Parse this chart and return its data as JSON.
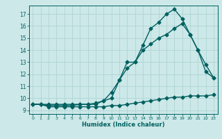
{
  "xlabel": "Humidex (Indice chaleur)",
  "bg_color": "#cce8e8",
  "line_color": "#006060",
  "grid_color": "#b0d4d4",
  "x_ticks": [
    0,
    1,
    2,
    3,
    4,
    5,
    6,
    7,
    8,
    9,
    10,
    11,
    12,
    13,
    14,
    15,
    16,
    17,
    18,
    19,
    20,
    21,
    22,
    23
  ],
  "y_ticks": [
    9,
    10,
    11,
    12,
    13,
    14,
    15,
    16,
    17
  ],
  "ylim": [
    8.7,
    17.7
  ],
  "xlim": [
    -0.5,
    23.5
  ],
  "line1_x": [
    0,
    1,
    2,
    3,
    4,
    5,
    6,
    7,
    8,
    9,
    10,
    11,
    12,
    13,
    14,
    15,
    16,
    17,
    18,
    19,
    20,
    21,
    22,
    23
  ],
  "line1_y": [
    9.5,
    9.5,
    9.3,
    9.3,
    9.3,
    9.3,
    9.3,
    9.3,
    9.3,
    9.3,
    9.4,
    9.4,
    9.5,
    9.6,
    9.7,
    9.8,
    9.9,
    10.0,
    10.1,
    10.1,
    10.2,
    10.2,
    10.2,
    10.3
  ],
  "line2_x": [
    0,
    1,
    2,
    3,
    4,
    5,
    6,
    7,
    8,
    9,
    10,
    11,
    12,
    13,
    14,
    15,
    16,
    17,
    18,
    19,
    20,
    21,
    22,
    23
  ],
  "line2_y": [
    9.5,
    9.5,
    9.5,
    9.5,
    9.5,
    9.5,
    9.5,
    9.5,
    9.5,
    9.8,
    10.0,
    11.5,
    13.0,
    13.0,
    14.4,
    15.8,
    16.3,
    17.0,
    17.4,
    16.6,
    15.3,
    14.0,
    12.2,
    11.7
  ],
  "line3_x": [
    0,
    1,
    2,
    3,
    4,
    5,
    6,
    7,
    8,
    9,
    10,
    11,
    12,
    13,
    14,
    15,
    16,
    17,
    18,
    19,
    20,
    21,
    22,
    23
  ],
  "line3_y": [
    9.5,
    9.5,
    9.4,
    9.4,
    9.4,
    9.4,
    9.5,
    9.5,
    9.6,
    9.8,
    10.5,
    11.5,
    12.5,
    13.0,
    14.0,
    14.5,
    15.0,
    15.3,
    15.8,
    16.2,
    15.3,
    14.0,
    12.8,
    11.7
  ],
  "marker": "D",
  "markersize": 2.5,
  "linewidth": 1.0,
  "xlabel_fontsize": 6,
  "xtick_fontsize": 4.5,
  "ytick_fontsize": 5.5
}
